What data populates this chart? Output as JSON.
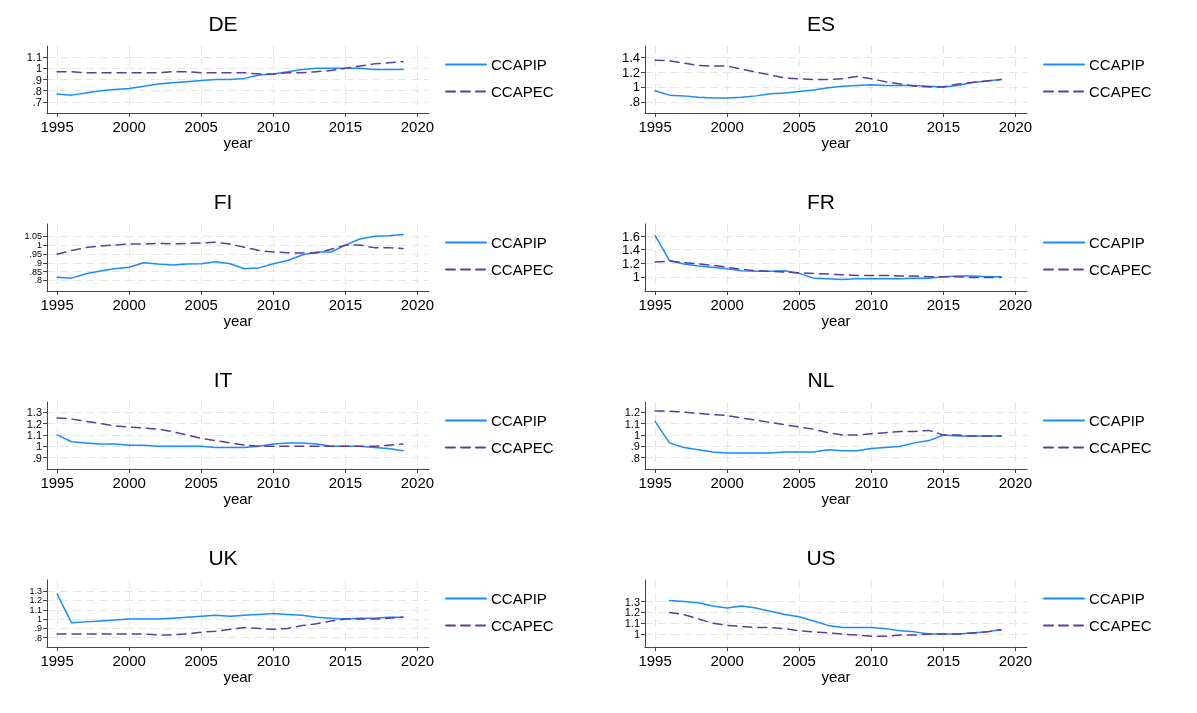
{
  "chart_data": [
    {
      "type": "line",
      "title": "DE",
      "xlabel": "year",
      "x": [
        1995,
        1996,
        1997,
        1998,
        1999,
        2000,
        2001,
        2002,
        2003,
        2004,
        2005,
        2006,
        2007,
        2008,
        2009,
        2010,
        2011,
        2012,
        2013,
        2014,
        2015,
        2016,
        2017,
        2018,
        2019
      ],
      "xlim": [
        1994.3,
        2020.8
      ],
      "xticks": [
        1995,
        2000,
        2005,
        2010,
        2015,
        2020
      ],
      "ylim": [
        0.6,
        1.2
      ],
      "yticks": [
        {
          "value": 0.7,
          "label": ".7"
        },
        {
          "value": 0.8,
          "label": ".8"
        },
        {
          "value": 0.9,
          "label": ".9"
        },
        1,
        1.1
      ],
      "grid": true,
      "legend": "right",
      "marker": "none",
      "series": [
        {
          "name": "CCAPIP",
          "color": "#1a8cff",
          "line_style": "solid",
          "values": [
            0.77,
            0.76,
            0.78,
            0.8,
            0.81,
            0.82,
            0.84,
            0.86,
            0.87,
            0.88,
            0.89,
            0.9,
            0.9,
            0.91,
            0.94,
            0.95,
            0.97,
            0.99,
            1.0,
            1.0,
            1.0,
            1.0,
            0.99,
            0.99,
            0.99
          ]
        },
        {
          "name": "CCAPEC",
          "color": "#5e3c99",
          "line_style": "dashed",
          "values": [
            0.97,
            0.97,
            0.96,
            0.96,
            0.96,
            0.96,
            0.96,
            0.96,
            0.97,
            0.97,
            0.96,
            0.96,
            0.96,
            0.96,
            0.95,
            0.95,
            0.96,
            0.96,
            0.97,
            0.98,
            1.0,
            1.02,
            1.04,
            1.05,
            1.06
          ]
        }
      ]
    },
    {
      "type": "line",
      "title": "ES",
      "xlabel": "year",
      "x": [
        1995,
        1996,
        1997,
        1998,
        1999,
        2000,
        2001,
        2002,
        2003,
        2004,
        2005,
        2006,
        2007,
        2008,
        2009,
        2010,
        2011,
        2012,
        2013,
        2014,
        2015,
        2016,
        2017,
        2018,
        2019
      ],
      "xlim": [
        1994.3,
        2020.8
      ],
      "xticks": [
        1995,
        2000,
        2005,
        2010,
        2015,
        2020
      ],
      "ylim": [
        0.65,
        1.55
      ],
      "yticks": [
        {
          "value": 0.8,
          "label": ".8"
        },
        1,
        1.2,
        1.4
      ],
      "grid": true,
      "legend": "right",
      "marker": "none",
      "series": [
        {
          "name": "CCAPIP",
          "color": "#1a8cff",
          "line_style": "solid",
          "values": [
            0.95,
            0.89,
            0.88,
            0.86,
            0.85,
            0.85,
            0.86,
            0.88,
            0.91,
            0.92,
            0.94,
            0.96,
            0.99,
            1.01,
            1.02,
            1.03,
            1.02,
            1.02,
            1.02,
            1.01,
            1.0,
            1.02,
            1.06,
            1.08,
            1.1
          ]
        },
        {
          "name": "CCAPEC",
          "color": "#5e3c99",
          "line_style": "dashed",
          "values": [
            1.36,
            1.35,
            1.32,
            1.29,
            1.28,
            1.28,
            1.24,
            1.2,
            1.16,
            1.12,
            1.11,
            1.1,
            1.1,
            1.11,
            1.14,
            1.11,
            1.07,
            1.04,
            1.01,
            1.0,
            1.0,
            1.04,
            1.06,
            1.08,
            1.1
          ]
        }
      ]
    },
    {
      "type": "line",
      "title": "FI",
      "xlabel": "year",
      "x": [
        1995,
        1996,
        1997,
        1998,
        1999,
        2000,
        2001,
        2002,
        2003,
        2004,
        2005,
        2006,
        2007,
        2008,
        2009,
        2010,
        2011,
        2012,
        2013,
        2014,
        2015,
        2016,
        2017,
        2018,
        2019
      ],
      "xlim": [
        1994.3,
        2020.8
      ],
      "xticks": [
        1995,
        2000,
        2005,
        2010,
        2015,
        2020
      ],
      "ylim": [
        0.74,
        1.12
      ],
      "yticks": [
        {
          "value": 0.8,
          "label": ".8"
        },
        {
          "value": 0.85,
          "label": ".85"
        },
        {
          "value": 0.9,
          "label": ".9"
        },
        {
          "value": 0.95,
          "label": ".95"
        },
        1,
        1.05
      ],
      "grid": true,
      "legend": "right",
      "marker": "none",
      "series": [
        {
          "name": "CCAPIP",
          "color": "#1a8cff",
          "line_style": "solid",
          "values": [
            0.818,
            0.813,
            0.838,
            0.853,
            0.866,
            0.875,
            0.9,
            0.893,
            0.888,
            0.893,
            0.895,
            0.906,
            0.895,
            0.866,
            0.871,
            0.895,
            0.913,
            0.944,
            0.961,
            0.961,
            1.0,
            1.035,
            1.05,
            1.054,
            1.061
          ]
        },
        {
          "name": "CCAPEC",
          "color": "#5e3c99",
          "line_style": "dashed",
          "values": [
            0.948,
            0.97,
            0.986,
            0.995,
            1.001,
            1.006,
            1.006,
            1.01,
            1.008,
            1.01,
            1.012,
            1.017,
            1.006,
            0.988,
            0.97,
            0.961,
            0.957,
            0.955,
            0.955,
            0.977,
            1.0,
            1.001,
            0.986,
            0.986,
            0.981
          ]
        }
      ]
    },
    {
      "type": "line",
      "title": "FR",
      "xlabel": "year",
      "x": [
        1995,
        1996,
        1997,
        1998,
        1999,
        2000,
        2001,
        2002,
        2003,
        2004,
        2005,
        2006,
        2007,
        2008,
        2009,
        2010,
        2011,
        2012,
        2013,
        2014,
        2015,
        2016,
        2017,
        2018,
        2019
      ],
      "xlim": [
        1994.3,
        2020.8
      ],
      "xticks": [
        1995,
        2000,
        2005,
        2010,
        2015,
        2020
      ],
      "ylim": [
        0.79,
        1.78
      ],
      "yticks": [
        1,
        1.2,
        1.4,
        1.6
      ],
      "grid": true,
      "legend": "right",
      "marker": "none",
      "series": [
        {
          "name": "CCAPIP",
          "color": "#1a8cff",
          "line_style": "solid",
          "values": [
            1.61,
            1.24,
            1.19,
            1.16,
            1.14,
            1.12,
            1.09,
            1.08,
            1.08,
            1.09,
            1.05,
            0.98,
            0.97,
            0.96,
            0.97,
            0.97,
            0.97,
            0.97,
            0.98,
            0.98,
            1.0,
            1.01,
            1.01,
            1.0,
            1.0
          ]
        },
        {
          "name": "CCAPEC",
          "color": "#5e3c99",
          "line_style": "dashed",
          "values": [
            1.22,
            1.23,
            1.21,
            1.19,
            1.17,
            1.14,
            1.11,
            1.09,
            1.08,
            1.07,
            1.06,
            1.05,
            1.04,
            1.03,
            1.02,
            1.02,
            1.02,
            1.01,
            1.01,
            1.0,
            1.0,
            1.0,
            0.99,
            0.99,
            0.99
          ]
        }
      ]
    },
    {
      "type": "line",
      "title": "IT",
      "xlabel": "year",
      "x": [
        1995,
        1996,
        1997,
        1998,
        1999,
        2000,
        2001,
        2002,
        2003,
        2004,
        2005,
        2006,
        2007,
        2008,
        2009,
        2010,
        2011,
        2012,
        2013,
        2014,
        2015,
        2016,
        2017,
        2018,
        2019
      ],
      "xlim": [
        1994.3,
        2020.8
      ],
      "xticks": [
        1995,
        2000,
        2005,
        2010,
        2015,
        2020
      ],
      "ylim": [
        0.8,
        1.39
      ],
      "yticks": [
        {
          "value": 0.9,
          "label": ".9"
        },
        1,
        1.1,
        1.2,
        1.3
      ],
      "grid": true,
      "legend": "right",
      "marker": "none",
      "series": [
        {
          "name": "CCAPIP",
          "color": "#1a8cff",
          "line_style": "solid",
          "values": [
            1.1,
            1.04,
            1.03,
            1.02,
            1.02,
            1.01,
            1.01,
            1.0,
            1.0,
            1.0,
            1.0,
            0.99,
            0.99,
            0.99,
            1.0,
            1.02,
            1.03,
            1.03,
            1.02,
            1.0,
            1.0,
            1.0,
            0.99,
            0.98,
            0.96
          ]
        },
        {
          "name": "CCAPEC",
          "color": "#5e3c99",
          "line_style": "dashed",
          "values": [
            1.25,
            1.24,
            1.22,
            1.2,
            1.18,
            1.17,
            1.16,
            1.15,
            1.13,
            1.1,
            1.07,
            1.05,
            1.03,
            1.01,
            1.0,
            1.0,
            1.0,
            1.0,
            1.0,
            1.0,
            1.0,
            1.0,
            1.0,
            1.01,
            1.02
          ]
        }
      ]
    },
    {
      "type": "line",
      "title": "NL",
      "xlabel": "year",
      "x": [
        1995,
        1996,
        1997,
        1998,
        1999,
        2000,
        2001,
        2002,
        2003,
        2004,
        2005,
        2006,
        2007,
        2008,
        2009,
        2010,
        2011,
        2012,
        2013,
        2014,
        2015,
        2016,
        2017,
        2018,
        2019
      ],
      "xlim": [
        1994.3,
        2020.8
      ],
      "xticks": [
        1995,
        2000,
        2005,
        2010,
        2015,
        2020
      ],
      "ylim": [
        0.7,
        1.29
      ],
      "yticks": [
        {
          "value": 0.8,
          "label": ".8"
        },
        {
          "value": 0.9,
          "label": ".9"
        },
        1,
        1.1,
        1.2
      ],
      "grid": true,
      "legend": "right",
      "marker": "none",
      "series": [
        {
          "name": "CCAPIP",
          "color": "#1a8cff",
          "line_style": "solid",
          "values": [
            1.12,
            0.93,
            0.89,
            0.87,
            0.85,
            0.84,
            0.84,
            0.84,
            0.84,
            0.85,
            0.85,
            0.85,
            0.87,
            0.86,
            0.86,
            0.88,
            0.89,
            0.9,
            0.93,
            0.95,
            1.0,
            0.99,
            0.99,
            0.99,
            0.99
          ]
        },
        {
          "name": "CCAPEC",
          "color": "#5e3c99",
          "line_style": "dashed",
          "values": [
            1.21,
            1.21,
            1.2,
            1.19,
            1.18,
            1.17,
            1.15,
            1.13,
            1.11,
            1.09,
            1.07,
            1.05,
            1.02,
            1.0,
            1.0,
            1.01,
            1.02,
            1.03,
            1.03,
            1.04,
            1.0,
            1.0,
            0.99,
            0.99,
            0.99
          ]
        }
      ]
    },
    {
      "type": "line",
      "title": "UK",
      "xlabel": "year",
      "x": [
        1995,
        1996,
        1997,
        1998,
        1999,
        2000,
        2001,
        2002,
        2003,
        2004,
        2005,
        2006,
        2007,
        2008,
        2009,
        2010,
        2011,
        2012,
        2013,
        2014,
        2015,
        2016,
        2017,
        2018,
        2019
      ],
      "xlim": [
        1994.3,
        2020.8
      ],
      "xticks": [
        1995,
        2000,
        2005,
        2010,
        2015,
        2020
      ],
      "ylim": [
        0.7,
        1.42
      ],
      "yticks": [
        {
          "value": 0.8,
          "label": ".8"
        },
        {
          "value": 0.9,
          "label": ".9"
        },
        1,
        1.1,
        1.2,
        1.3
      ],
      "grid": true,
      "legend": "right",
      "marker": "none",
      "series": [
        {
          "name": "CCAPIP",
          "color": "#1a8cff",
          "line_style": "solid",
          "values": [
            1.27,
            0.96,
            0.97,
            0.98,
            0.99,
            1.0,
            1.0,
            1.0,
            1.01,
            1.02,
            1.03,
            1.04,
            1.03,
            1.04,
            1.05,
            1.06,
            1.05,
            1.04,
            1.02,
            1.01,
            1.0,
            1.01,
            1.01,
            1.02,
            1.02
          ]
        },
        {
          "name": "CCAPEC",
          "color": "#5e3c99",
          "line_style": "dashed",
          "values": [
            0.84,
            0.84,
            0.84,
            0.84,
            0.84,
            0.84,
            0.84,
            0.83,
            0.83,
            0.84,
            0.86,
            0.87,
            0.89,
            0.91,
            0.9,
            0.89,
            0.9,
            0.93,
            0.95,
            0.98,
            1.0,
            1.0,
            1.0,
            1.01,
            1.02
          ]
        }
      ]
    },
    {
      "type": "line",
      "title": "US",
      "xlabel": "year",
      "x": [
        1996,
        1997,
        1998,
        1999,
        2000,
        2001,
        2002,
        2003,
        2004,
        2005,
        2006,
        2007,
        2008,
        2009,
        2010,
        2011,
        2012,
        2013,
        2014,
        2015,
        2016,
        2017,
        2018,
        2019
      ],
      "xlim": [
        1994.3,
        2020.8
      ],
      "xticks": [
        1995,
        2000,
        2005,
        2010,
        2015,
        2020
      ],
      "ylim": [
        0.88,
        1.5
      ],
      "yticks": [
        1,
        1.1,
        1.2,
        1.3
      ],
      "grid": true,
      "legend": "right",
      "marker": "none",
      "series": [
        {
          "name": "CCAPIP",
          "color": "#1a8cff",
          "line_style": "solid",
          "values": [
            1.31,
            1.3,
            1.29,
            1.26,
            1.24,
            1.26,
            1.24,
            1.21,
            1.18,
            1.16,
            1.12,
            1.08,
            1.06,
            1.06,
            1.06,
            1.05,
            1.03,
            1.02,
            1.0,
            1.0,
            1.0,
            1.01,
            1.02,
            1.04
          ]
        },
        {
          "name": "CCAPEC",
          "color": "#5e3c99",
          "line_style": "dashed",
          "values": [
            1.2,
            1.18,
            1.14,
            1.1,
            1.08,
            1.07,
            1.06,
            1.06,
            1.05,
            1.03,
            1.02,
            1.01,
            1.0,
            0.99,
            0.98,
            0.98,
            0.99,
            0.99,
            1.0,
            1.0,
            1.0,
            1.01,
            1.02,
            1.04
          ]
        }
      ]
    }
  ]
}
